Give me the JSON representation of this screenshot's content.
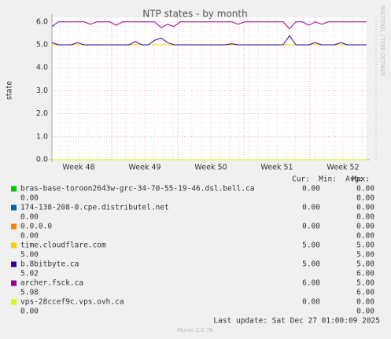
{
  "chart_data": {
    "type": "line",
    "title": "NTP states - by month",
    "y_label": "state",
    "ylim": [
      0,
      6.2
    ],
    "yticks": [
      {
        "value": 0,
        "label": "0.0"
      },
      {
        "value": 1,
        "label": "1.0"
      },
      {
        "value": 2,
        "label": "2.0"
      },
      {
        "value": 3,
        "label": "3.0"
      },
      {
        "value": 4,
        "label": "4.0"
      },
      {
        "value": 5,
        "label": "5.0"
      },
      {
        "value": 6,
        "label": "6.0"
      }
    ],
    "x_tick_labels": [
      "Week 48",
      "Week 49",
      "Week 50",
      "Week 51",
      "Week 52"
    ],
    "grid": true,
    "series": [
      {
        "name": "bras-base-toroon2643w-grc-34-70-55-19-46.dsl.bell.ca",
        "color": "#00cc00",
        "values": [
          0,
          0,
          0,
          0,
          0,
          0,
          0,
          0,
          0,
          0,
          0,
          0,
          0,
          0,
          0,
          0,
          0,
          0,
          0,
          0,
          0,
          0,
          0,
          0,
          0,
          0,
          0,
          0,
          0,
          0,
          0,
          0,
          0,
          0,
          0,
          0,
          0,
          0,
          0,
          0,
          0,
          0,
          0,
          0,
          0,
          0,
          0,
          0,
          0,
          0
        ]
      },
      {
        "name": "174-138-208-0.cpe.distributel.net",
        "color": "#0066b3",
        "values": [
          0,
          0,
          0,
          0,
          0,
          0,
          0,
          0,
          0,
          0,
          0,
          0,
          0,
          0,
          0,
          0,
          0,
          0,
          0,
          0,
          0,
          0,
          0,
          0,
          0,
          0,
          0,
          0,
          0,
          0,
          0,
          0,
          0,
          0,
          0,
          0,
          0,
          0,
          0,
          0,
          0,
          0,
          0,
          0,
          0,
          0,
          0,
          0,
          0,
          0
        ]
      },
      {
        "name": "0.0.0.0",
        "color": "#ff8000",
        "values": [
          0,
          0,
          0,
          0,
          0,
          0,
          0,
          0,
          0,
          0,
          0,
          0,
          0,
          0,
          0,
          0,
          0,
          0,
          0,
          0,
          0,
          0,
          0,
          0,
          0,
          0,
          0,
          0,
          0,
          0,
          0,
          0,
          0,
          0,
          0,
          0,
          0,
          0,
          0,
          0,
          0,
          0,
          0,
          0,
          0,
          0,
          0,
          0,
          0,
          0
        ]
      },
      {
        "name": "time.cloudflare.com",
        "color": "#ffcc00",
        "values": [
          5,
          5,
          5,
          5,
          5,
          5,
          5,
          5,
          5,
          5,
          5,
          5,
          5,
          5,
          5,
          5,
          5,
          5,
          5,
          5,
          5,
          5,
          5,
          5,
          5,
          5,
          5,
          5,
          5,
          5,
          5,
          5,
          5,
          5,
          5,
          5,
          5,
          5,
          5,
          5,
          5,
          5,
          5,
          5,
          5,
          5,
          5,
          5,
          5,
          5
        ]
      },
      {
        "name": "b.8bitbyte.ca",
        "color": "#330099",
        "values": [
          5.1,
          5,
          5,
          5,
          5.1,
          5,
          5,
          5,
          5,
          5,
          5,
          5,
          5,
          5.15,
          5,
          5,
          5.2,
          5.3,
          5.1,
          5,
          5,
          5,
          5,
          5,
          5,
          5,
          5,
          5,
          5.05,
          5,
          5,
          5,
          5,
          5,
          5,
          5,
          5,
          5.4,
          5,
          5,
          5,
          5.1,
          5,
          5,
          5,
          5.1,
          5,
          5,
          5,
          5
        ]
      },
      {
        "name": "archer.fsck.ca",
        "color": "#990099",
        "values": [
          5.8,
          6,
          6,
          6,
          6,
          6,
          5.9,
          6,
          6,
          6,
          5.85,
          6,
          6,
          6,
          6,
          6,
          6,
          5.75,
          5.9,
          5.8,
          6,
          6,
          6,
          6,
          6,
          6,
          6,
          6,
          6,
          5.9,
          6,
          6,
          6,
          6,
          6,
          6,
          6,
          5.7,
          6,
          6,
          5.85,
          6,
          5.9,
          6,
          6,
          6,
          6,
          6,
          6,
          6
        ]
      },
      {
        "name": "vps-28ccef9c.vps.ovh.ca",
        "color": "#ccff00",
        "values": [
          0,
          0,
          0,
          0,
          0,
          0,
          0,
          0,
          0,
          0,
          0,
          0,
          0,
          0,
          0,
          0,
          0,
          0,
          0,
          0,
          0,
          0,
          0,
          0,
          0,
          0,
          0,
          0,
          0,
          0,
          0,
          0,
          0,
          0,
          0,
          0,
          0,
          0,
          0,
          0,
          0,
          0,
          0,
          0,
          0,
          0,
          0,
          0,
          0,
          0
        ]
      }
    ],
    "legend_headers": [
      "Cur:",
      "Min:",
      "Avg:",
      "Max:"
    ],
    "legend_stats": [
      [
        "0.00",
        "0.00",
        "0.00",
        "0.00"
      ],
      [
        "0.00",
        "0.00",
        "0.00",
        "0.00"
      ],
      [
        "0.00",
        "0.00",
        "0.00",
        "0.00"
      ],
      [
        "5.00",
        "5.00",
        "5.00",
        "5.00"
      ],
      [
        "5.00",
        "5.00",
        "5.02",
        "6.00"
      ],
      [
        "6.00",
        "5.00",
        "5.98",
        "6.00"
      ],
      [
        "0.00",
        "0.00",
        "0.00",
        "0.00"
      ]
    ],
    "last_update": "Last update: Sat Dec 27 01:00:09 2025",
    "side_label": "RRDTOOL / TOBI OETIKER",
    "footer": "Munin 2.0.76"
  }
}
